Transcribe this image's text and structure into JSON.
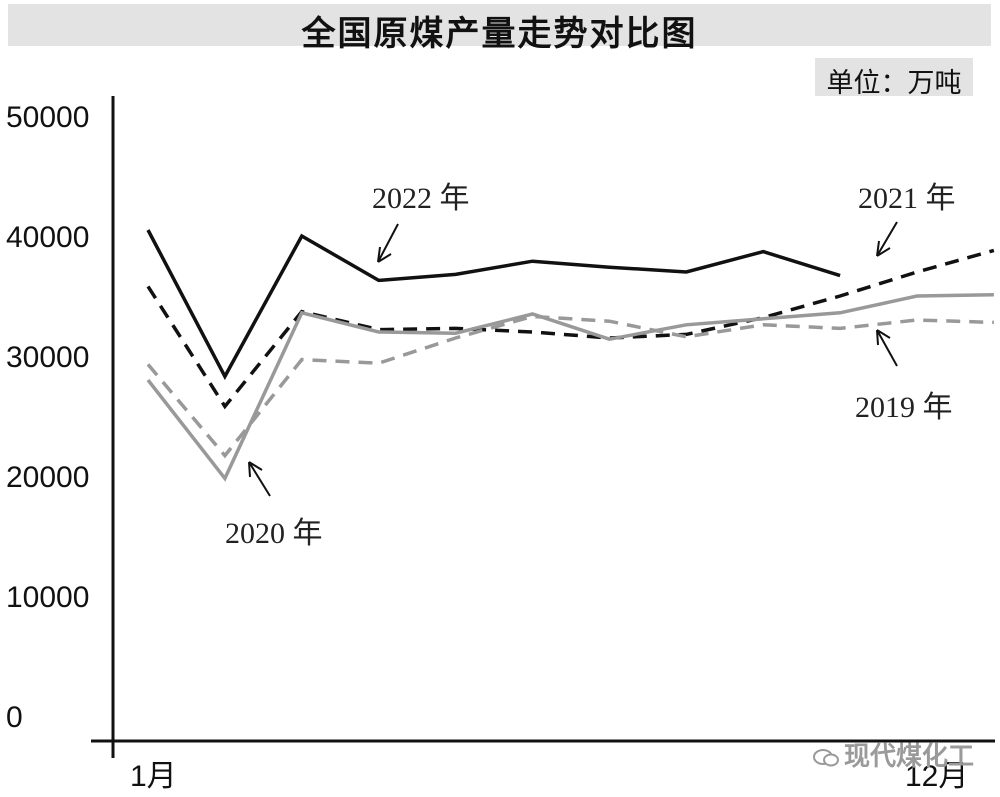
{
  "chart_data": {
    "type": "line",
    "title": "全国原煤产量走势对比图",
    "unit_label": "单位：万吨",
    "x_start_label": "1月",
    "x_end_label": "12月",
    "y_ticks": [
      "0",
      "10000",
      "20000",
      "30000",
      "40000",
      "50000"
    ],
    "ylim": [
      0,
      50000
    ],
    "grid": false,
    "series": [
      {
        "name": "2022 年",
        "color": "#111111",
        "dash": false,
        "values": [
          40500,
          28300,
          40000,
          36300,
          36800,
          37900,
          37400,
          37000,
          38700,
          36700
        ]
      },
      {
        "name": "2021 年",
        "color": "#111111",
        "dash": true,
        "values": [
          35800,
          25800,
          33700,
          32200,
          32300,
          32000,
          31500,
          31800,
          33200,
          35000,
          37000,
          38800
        ]
      },
      {
        "name": "2020 年",
        "color": "#999999",
        "dash": false,
        "values": [
          28000,
          19800,
          33600,
          32000,
          31900,
          33500,
          31400,
          32600,
          33100,
          33600,
          35000,
          35100
        ]
      },
      {
        "name": "2019 年",
        "color": "#999999",
        "dash": true,
        "values": [
          29300,
          21700,
          29700,
          29400,
          31500,
          33300,
          32900,
          31600,
          32600,
          32300,
          33000,
          32800
        ]
      }
    ]
  },
  "watermark": "现代煤化工"
}
